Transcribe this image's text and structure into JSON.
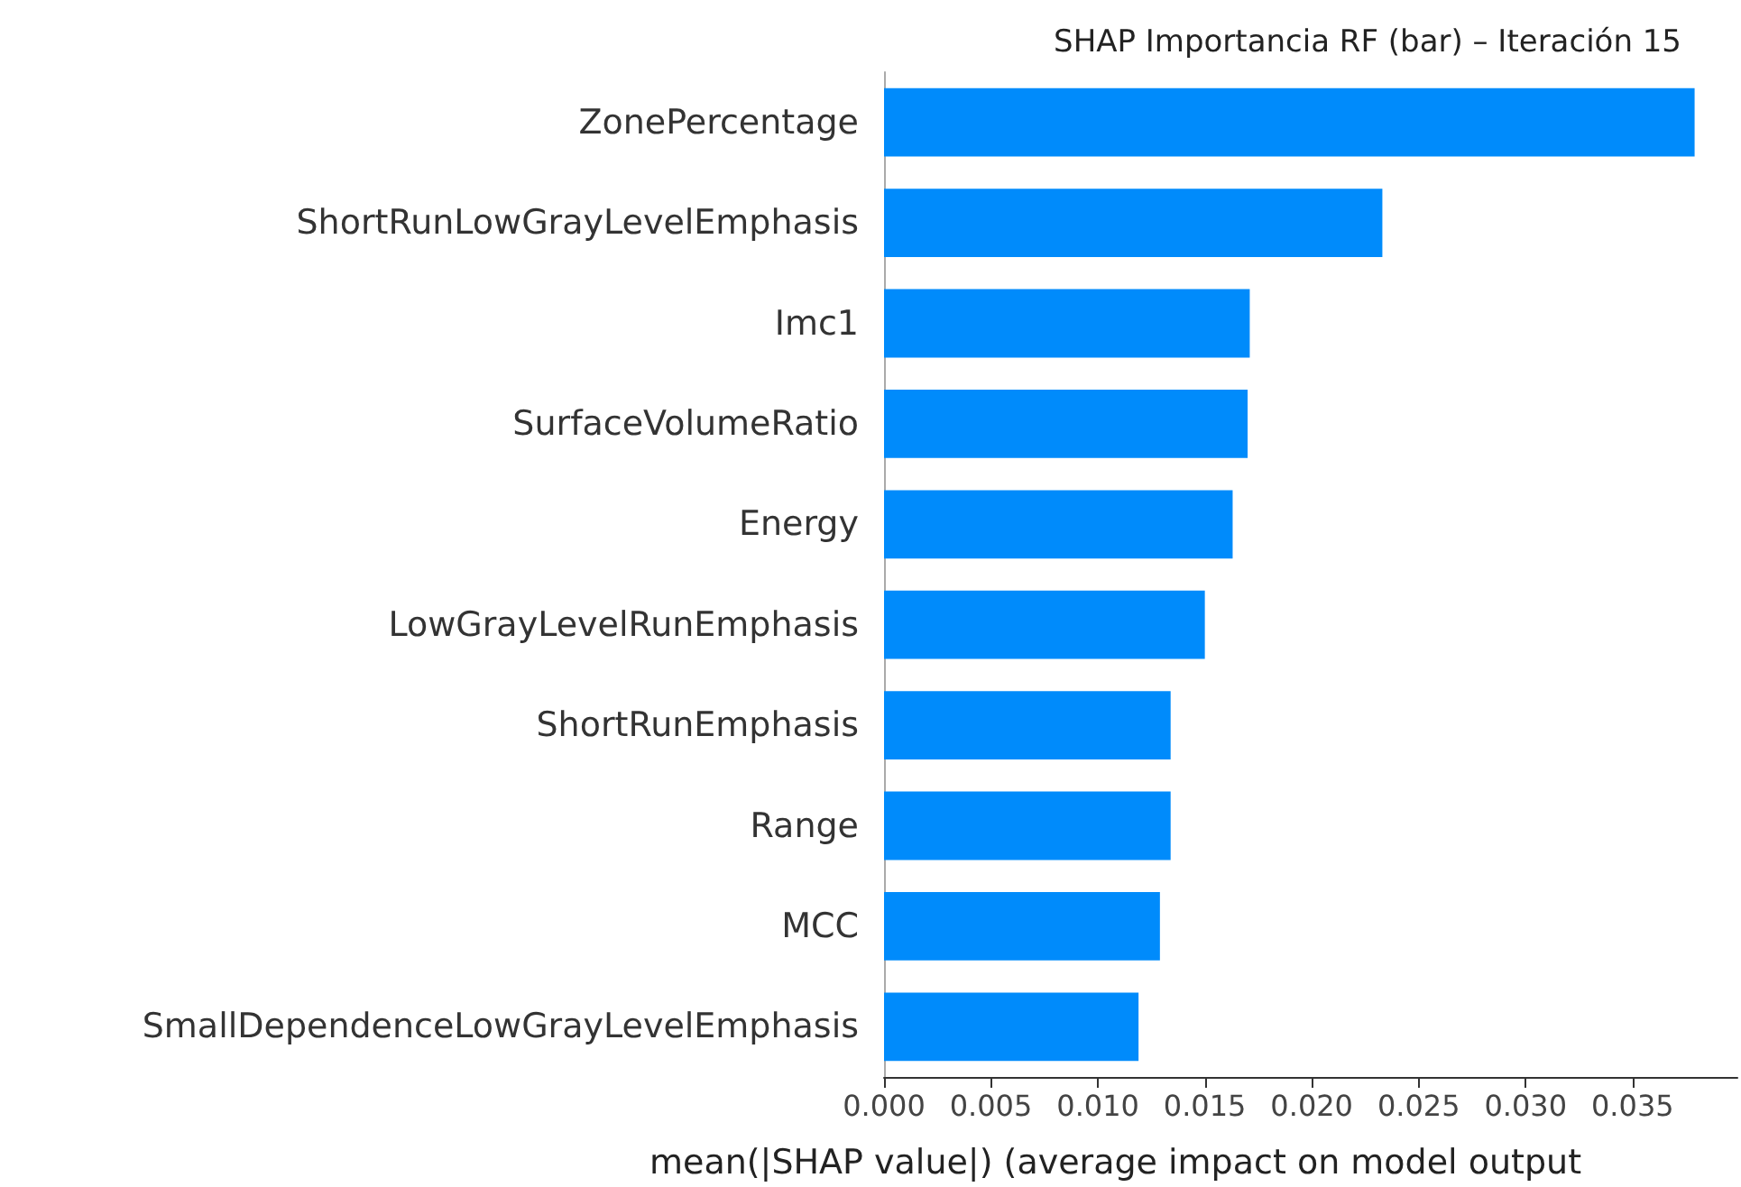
{
  "chart_data": {
    "type": "bar",
    "orientation": "horizontal",
    "title": "SHAP Importancia RF (bar) – Iteración 15",
    "xlabel": "mean(|SHAP value|) (average impact on model output",
    "categories": [
      "ZonePercentage",
      "ShortRunLowGrayLevelEmphasis",
      "Imc1",
      "SurfaceVolumeRatio",
      "Energy",
      "LowGrayLevelRunEmphasis",
      "ShortRunEmphasis",
      "Range",
      "MCC",
      "SmallDependenceLowGrayLevelEmphasis"
    ],
    "values": [
      0.0379,
      0.0233,
      0.0171,
      0.017,
      0.0163,
      0.015,
      0.0134,
      0.0134,
      0.0129,
      0.0119
    ],
    "color": "#008bfb",
    "xlim": [
      0,
      0.0399
    ],
    "xticks": [
      {
        "value": 0,
        "label": "0.000"
      },
      {
        "value": 0.005,
        "label": "0.005"
      },
      {
        "value": 0.01,
        "label": "0.010"
      },
      {
        "value": 0.015,
        "label": "0.015"
      },
      {
        "value": 0.02,
        "label": "0.020"
      },
      {
        "value": 0.025,
        "label": "0.025"
      },
      {
        "value": 0.03,
        "label": "0.030"
      },
      {
        "value": 0.035,
        "label": "0.035"
      }
    ],
    "grid": false
  }
}
